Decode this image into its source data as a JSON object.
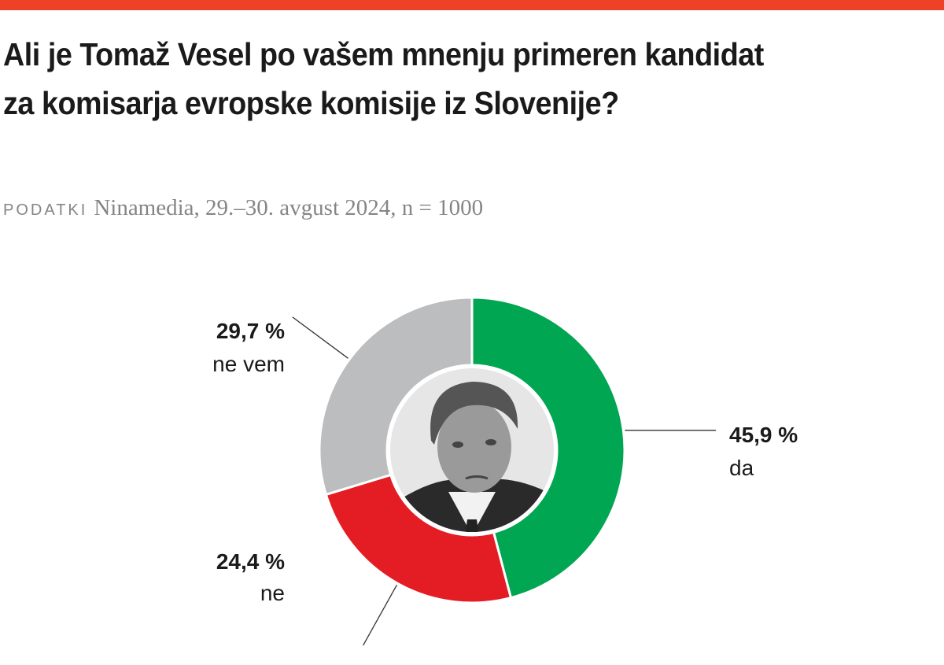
{
  "header": {
    "accent_color": "#ee4126",
    "title": "Ali je Tomaž Vesel po vašem mnenju primeren kandidat za komisarja evropske komisije iz Slovenije?",
    "source_label": "PODATKI",
    "source_text": "Ninamedia, 29.–30. avgust 2024, n = 1000"
  },
  "chart_data": {
    "type": "pie",
    "variant": "donut",
    "center_image": "portrait photo",
    "slices": [
      {
        "label": "da",
        "value": 45.9,
        "value_label": "45,9 %",
        "color": "#00a651"
      },
      {
        "label": "ne",
        "value": 24.4,
        "value_label": "24,4 %",
        "color": "#e41d25"
      },
      {
        "label": "ne vem",
        "value": 29.7,
        "value_label": "29,7 %",
        "color": "#bcbdbf"
      }
    ]
  }
}
